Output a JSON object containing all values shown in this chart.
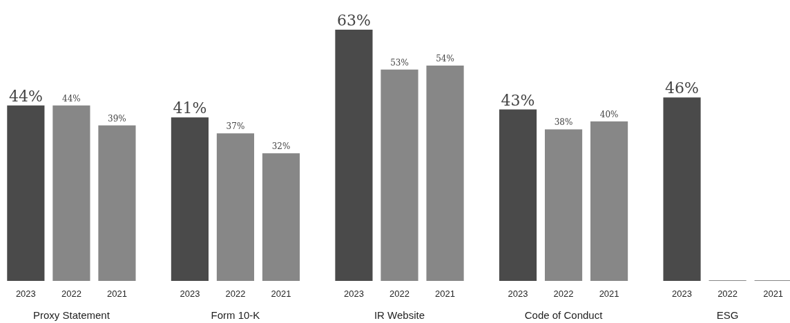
{
  "chart_data": {
    "type": "bar",
    "categories": [
      "Proxy Statement",
      "Form 10-K",
      "IR Website",
      "Code of Conduct",
      "ESG"
    ],
    "series": [
      {
        "name": "2023",
        "color": "#4a4a4a",
        "values": [
          44,
          41,
          63,
          43,
          46
        ],
        "value_labels": [
          "44%",
          "41%",
          "63%",
          "43%",
          "46%"
        ]
      },
      {
        "name": "2022",
        "color": "#878787",
        "values": [
          44,
          37,
          53,
          38,
          0
        ],
        "value_labels": [
          "44%",
          "37%",
          "53%",
          "38%",
          null
        ]
      },
      {
        "name": "2021",
        "color": "#878787",
        "values": [
          39,
          32,
          54,
          40,
          0
        ],
        "value_labels": [
          "39%",
          "32%",
          "54%",
          "40%",
          null
        ]
      }
    ]
  }
}
